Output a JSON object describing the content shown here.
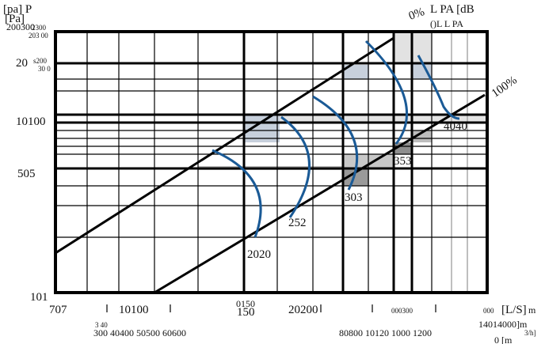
{
  "header": {
    "left_unit": "[pa] P",
    "left_unit_2": "[Pa]",
    "left_top": "200300",
    "left_top_2": "2300",
    "left_top_3": "203 00",
    "right_zero": "0%",
    "right_unit": "L PA [dB",
    "right_unit_2": "()L L PA",
    "right_full": "100%"
  },
  "y_labels": [
    {
      "main": "20",
      "small": "s200",
      "small_2": "30 0"
    },
    {
      "main": "10100"
    },
    {
      "main": "505"
    },
    {
      "main": "101"
    }
  ],
  "curve_labels": [
    "4040",
    "353",
    "303",
    "252",
    "2020"
  ],
  "x_labels": [
    "707",
    "10100",
    "0150",
    "150",
    "20200",
    "000300",
    "000",
    "[L/S]",
    "m"
  ],
  "x_labels_2": [
    "3 40",
    "300 40400 50500 60600",
    "80800 10120 1000 1200",
    "14014000]m",
    "3/h]",
    "0 [m"
  ]
}
